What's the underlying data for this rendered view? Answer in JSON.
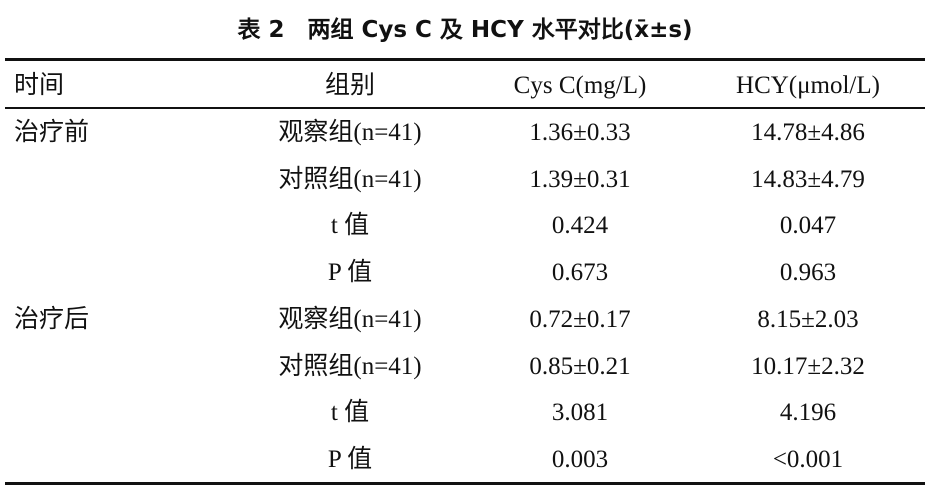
{
  "title": "表 2　两组 Cys C 及 HCY 水平对比(x̄±s)",
  "table": {
    "header": [
      "时间",
      "组别",
      "Cys C(mg/L)",
      "HCY(μmol/L)"
    ],
    "rows": [
      [
        "治疗前",
        "观察组(n=41)",
        "1.36±0.33",
        "14.78±4.86"
      ],
      [
        null,
        "对照组(n=41)",
        "1.39±0.31",
        "14.83±4.79"
      ],
      [
        null,
        "t 值",
        "0.424",
        "0.047"
      ],
      [
        null,
        "P 值",
        "0.673",
        "0.963"
      ],
      [
        "治疗后",
        "观察组(n=41)",
        "0.72±0.17",
        "8.15±2.03"
      ],
      [
        null,
        "对照组(n=41)",
        "0.85±0.21",
        "10.17±2.32"
      ],
      [
        null,
        "t 值",
        "3.081",
        "4.196"
      ],
      [
        null,
        "P 值",
        "0.003",
        "<0.001"
      ]
    ]
  }
}
